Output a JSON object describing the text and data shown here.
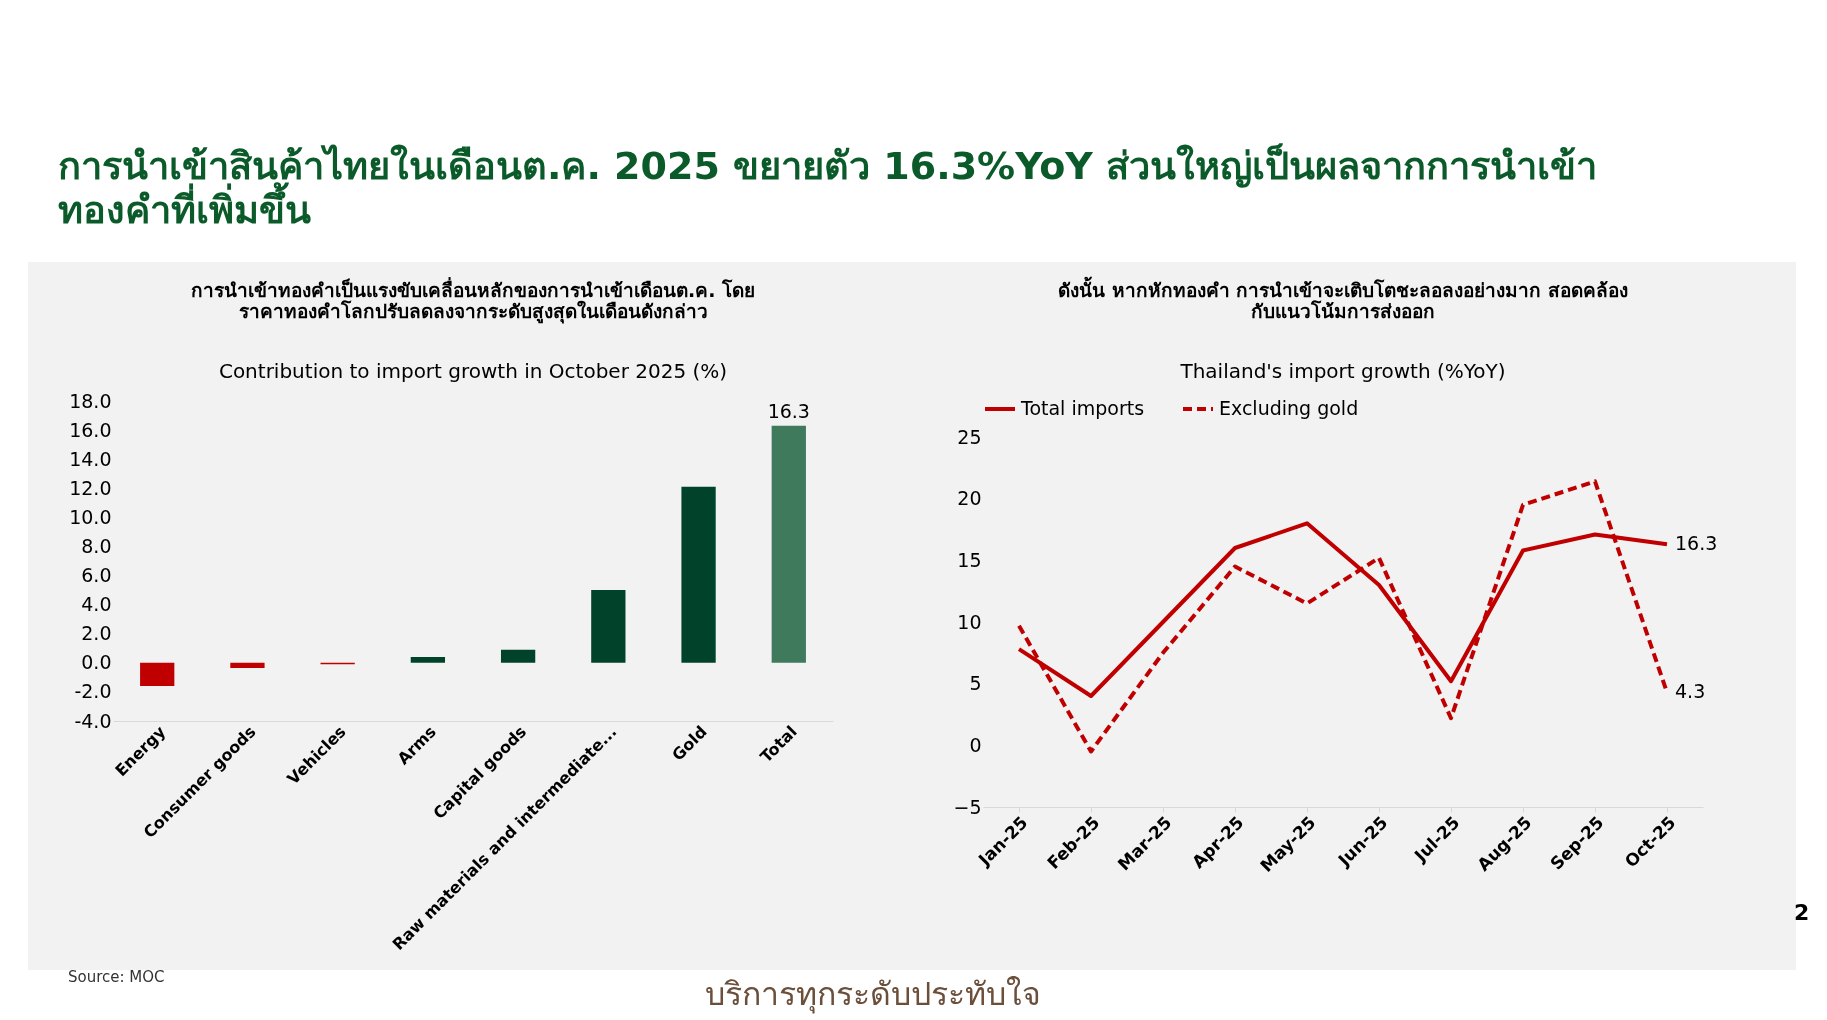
{
  "chart_data": [
    {
      "type": "bar",
      "title": "การนำเข้าทองคำเป็นแรงขับเคลื่อนหลักของการนำเข้าเดือนต.ค. โดย\nราคาทองคำโลกปรับลดลงจากระดับสูงสุดในเดือนดังกล่าว",
      "subtitle": "Contribution to import growth in October 2025 (%)",
      "annotations": [
        "การนำเข้าสินค้าไทยในเดือนต.ค. 2025 ขยายตัว 16.3%YoY ส่วนใหญ่เป็นผลจากการนำเข้า\nทองคำที่เพิ่มขึ้น",
        "Source: MOC",
        "บริการทุกระดับประทับใจ",
        "2"
      ],
      "categories": [
        "Energy",
        "Consumer goods",
        "Vehicles",
        "Arms",
        "Capital goods",
        "Raw materials and intermediate...",
        "Gold",
        "Total"
      ],
      "values": [
        -1.6,
        -0.35,
        -0.1,
        0.4,
        0.9,
        5.0,
        12.1,
        16.3
      ],
      "colors": [
        "#c00000",
        "#c00000",
        "#c00000",
        "#00432a",
        "#00432a",
        "#00432a",
        "#00432a",
        "#3f7a5c"
      ],
      "value_labels": [
        null,
        null,
        null,
        null,
        null,
        null,
        null,
        "16.3"
      ],
      "ylim": [
        -4,
        18
      ],
      "yticks": [
        {
          "value": -4,
          "label": "-4.0"
        },
        {
          "value": -2,
          "label": "-2.0"
        },
        {
          "value": 0,
          "label": "0.0"
        },
        {
          "value": 2,
          "label": "2.0"
        },
        {
          "value": 4,
          "label": "4.0"
        },
        {
          "value": 6,
          "label": "6.0"
        },
        {
          "value": 8,
          "label": "8.0"
        },
        {
          "value": 10,
          "label": "10.0"
        },
        {
          "value": 12,
          "label": "12.0"
        },
        {
          "value": 14,
          "label": "14.0"
        },
        {
          "value": 16,
          "label": "16.0"
        },
        {
          "value": 18,
          "label": "18.0"
        }
      ],
      "grid": false
    },
    {
      "type": "line",
      "title": "ดังนั้น หากหักทองคำ การนำเข้าจะเติบโตชะลอลงอย่างมาก สอดคล้อง\nกับแนวโน้มการส่งออก",
      "subtitle": "Thailand's import growth (%YoY)",
      "categories": [
        "Jan-25",
        "Feb-25",
        "Mar-25",
        "Apr-25",
        "May-25",
        "Jun-25",
        "Jul-25",
        "Aug-25",
        "Sep-25",
        "Oct-25"
      ],
      "series": [
        {
          "name": "Total imports",
          "color": "#c00000",
          "line_style": "solid",
          "values": [
            7.8,
            4.0,
            10.0,
            16.0,
            18.0,
            13.0,
            5.2,
            15.8,
            17.1,
            16.3
          ],
          "value_labels": [
            null,
            null,
            null,
            null,
            null,
            null,
            null,
            null,
            null,
            "16.3"
          ]
        },
        {
          "name": "Excluding gold",
          "color": "#c00000",
          "line_style": "dashed",
          "values": [
            9.7,
            -0.5,
            7.5,
            14.5,
            11.5,
            15.2,
            2.2,
            19.5,
            21.4,
            4.3
          ],
          "value_labels": [
            null,
            null,
            null,
            null,
            null,
            null,
            null,
            null,
            null,
            "4.3"
          ]
        }
      ],
      "ylim": [
        -5,
        25
      ],
      "yticks": [
        -5,
        0,
        5,
        10,
        15,
        20,
        25
      ],
      "legend": "top",
      "grid": false
    }
  ]
}
